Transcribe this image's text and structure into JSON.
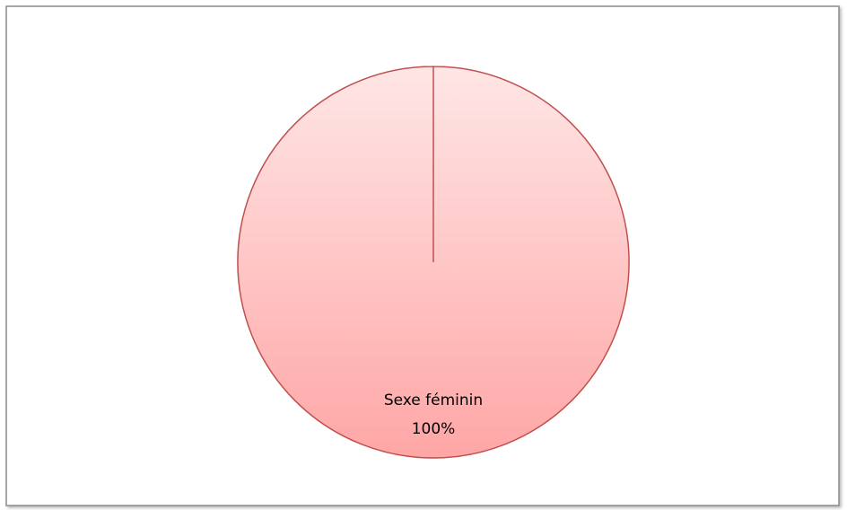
{
  "chart_data": {
    "type": "pie",
    "categories": [
      "Sexe féminin"
    ],
    "values": [
      100
    ],
    "value_labels": [
      "100%"
    ],
    "colors": [
      "#ffa6a6"
    ],
    "edge_color": "#c0504d"
  }
}
